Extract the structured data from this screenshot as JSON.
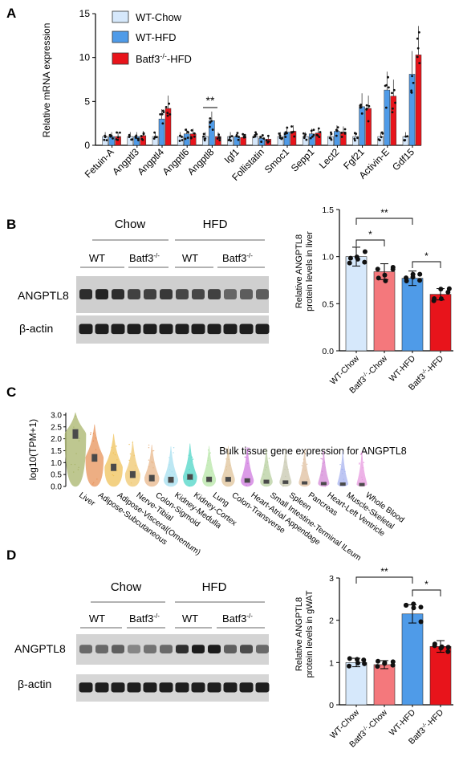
{
  "panels": {
    "A": "A",
    "B": "B",
    "C": "C",
    "D": "D"
  },
  "colors": {
    "wt_chow": "#d6e8fb",
    "wt_hfd": "#4f9be8",
    "batf3_hfd": "#e8141b",
    "batf3_chow": "#f4787c",
    "c_liver": "#a9b56b"
  },
  "chart_data": [
    {
      "id": "A",
      "type": "bar",
      "ylabel": "Relative mRNA expression",
      "ylim": [
        0,
        15
      ],
      "yticks": [
        "0",
        "5",
        "10",
        "15"
      ],
      "categories": [
        "Fetuin-A",
        "Angptl3",
        "Angptl4",
        "Angptl6",
        "Angptl8",
        "Igf1",
        "Follistatin",
        "Smoc1",
        "Sepp1",
        "Lect2",
        "Fgf21",
        "Activin-E",
        "Gdf15"
      ],
      "series": [
        {
          "name": "WT-Chow",
          "values": [
            1.0,
            1.0,
            1.0,
            1.0,
            1.0,
            1.0,
            1.0,
            1.0,
            1.0,
            1.0,
            1.0,
            1.0,
            1.0
          ]
        },
        {
          "name": "WT-HFD",
          "values": [
            1.0,
            1.0,
            3.0,
            1.3,
            2.8,
            1.0,
            0.8,
            1.5,
            1.3,
            1.6,
            4.4,
            6.3,
            8.1
          ]
        },
        {
          "name": "Batf3-/--HFD",
          "values": [
            1.0,
            1.1,
            4.2,
            1.3,
            1.0,
            0.9,
            0.7,
            1.6,
            1.4,
            1.5,
            4.2,
            5.6,
            10.3
          ]
        }
      ],
      "legend": {
        "wt_chow": "WT-Chow",
        "wt_hfd": "WT-HFD",
        "batf3_pre": "Batf3",
        "sup": "-/-",
        "batf3_post": "-HFD"
      },
      "annotation": "**"
    },
    {
      "id": "B",
      "type": "bar",
      "ylabel_1": "Relative ANGPTL8",
      "ylabel_2": "protein levels in liver",
      "ylim": [
        0,
        1.5
      ],
      "yticks": [
        "0.0",
        "0.5",
        "1.0",
        "1.5"
      ],
      "categories": [
        "WT-Chow",
        "Batf3-/--Chow",
        "WT-HFD",
        "Batf3-/--HFD"
      ],
      "values": [
        1.0,
        0.84,
        0.77,
        0.6
      ],
      "sig": [
        "**",
        "*",
        "*"
      ]
    },
    {
      "id": "C",
      "type": "violin",
      "title": "Bulk tissue gene expression for ANGPTL8",
      "ylabel": "log10(TPM+1)",
      "ylim": [
        0,
        3.3
      ],
      "yticks": [
        "0.0",
        "0.5",
        "1.0",
        "1.5",
        "2.0",
        "2.5",
        "3.0"
      ],
      "categories": [
        "Liver",
        "Adipose-Subcutaneous",
        "Adipose-Visceral(Omentum)",
        "Nerve-Tibial",
        "Colon-Sigmoid",
        "Kidney-Medulla",
        "Kidney-Cortex",
        "Lung",
        "Colon-Transverse",
        "Heart-Atrial Appendage",
        "Small Intestine-Terminal ILeum",
        "Spleen",
        "Pancreas",
        "Heart-Left Ventricle",
        "Muscle-Skeletal",
        "Whole Blood"
      ],
      "medians": [
        2.2,
        1.2,
        0.8,
        0.5,
        0.35,
        0.28,
        0.4,
        0.3,
        0.3,
        0.25,
        0.2,
        0.18,
        0.15,
        0.12,
        0.1,
        0.08
      ]
    },
    {
      "id": "D",
      "type": "bar",
      "ylabel_1": "Relative ANGPTL8",
      "ylabel_2": "protein levels in gWAT",
      "ylim": [
        0,
        3
      ],
      "yticks": [
        "0",
        "1",
        "2",
        "3"
      ],
      "categories": [
        "WT-Chow",
        "Batf3-/--Chow",
        "WT-HFD",
        "Batf3-/--HFD"
      ],
      "values": [
        1.0,
        0.95,
        2.15,
        1.38
      ],
      "sig": [
        "**",
        "*"
      ]
    }
  ],
  "blots": {
    "B": {
      "chow": "Chow",
      "hfd": "HFD",
      "wt1": "WT",
      "batf1": "Batf3",
      "wt2": "WT",
      "batf2": "Batf3",
      "sup": "-/-",
      "row1": "ANGPTL8",
      "row2": "β-actin"
    },
    "D": {
      "chow": "Chow",
      "hfd": "HFD",
      "wt1": "WT",
      "batf1": "Batf3",
      "wt2": "WT",
      "batf2": "Batf3",
      "sup": "-/-",
      "row1": "ANGPTL8",
      "row2": "β-actin"
    }
  },
  "xlabels": {
    "wt_chow": "WT-Chow",
    "batf3_chow_pre": "Batf3",
    "batf3_chow_post": "-Chow",
    "wt_hfd": "WT-HFD",
    "batf3_hfd_pre": "Batf3",
    "batf3_hfd_post": "-HFD",
    "sup": "-/-"
  }
}
